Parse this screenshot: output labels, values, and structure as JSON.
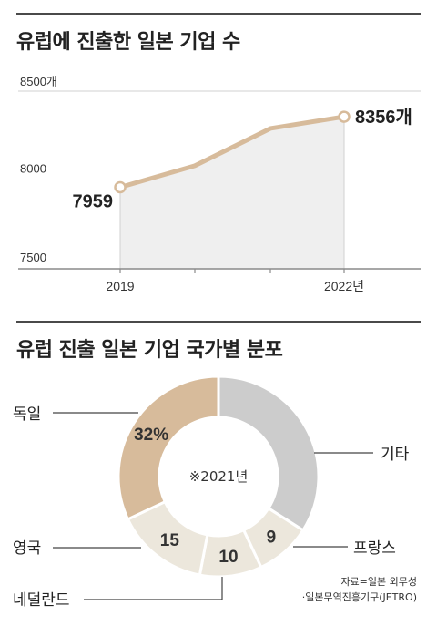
{
  "line_section": {
    "title": "유럽에 진출한 일본 기업 수"
  },
  "pie_section": {
    "title": "유럽 진출 일본 기업 국가별 분포"
  },
  "source": {
    "line1": "자료=일본 외무성",
    "line2": "·일본무역진흥기구(JETRO)"
  },
  "colors": {
    "line": "#d7bb9b",
    "area": "#efefef",
    "grid": "#d0d0d0",
    "axis": "#8a8a8a"
  },
  "chart_data": [
    {
      "type": "line",
      "title": "유럽에 진출한 일본 기업 수",
      "x": [
        2019,
        2020,
        2021,
        2022
      ],
      "x_tick_labels": [
        "2019",
        "",
        "",
        "2022년"
      ],
      "series": [
        {
          "values": [
            7959,
            8080,
            8290,
            8356
          ]
        }
      ],
      "y_tick_labels": [
        "8500개",
        "8000",
        "7500"
      ],
      "ylim": [
        7500,
        8500
      ],
      "annotations": [
        {
          "x": 2019,
          "label": "7959"
        },
        {
          "x": 2022,
          "label": "8356개"
        }
      ],
      "grid": true
    },
    {
      "type": "pie",
      "title": "유럽 진출 일본 기업 국가별 분포",
      "center_note": "※2021년",
      "slices": [
        {
          "name": "기타",
          "value": 34,
          "label": "",
          "color": "#cccccc"
        },
        {
          "name": "프랑스",
          "value": 9,
          "label": "9",
          "color": "#ece7dc"
        },
        {
          "name": "네덜란드",
          "value": 10,
          "label": "10",
          "color": "#ece7dc"
        },
        {
          "name": "영국",
          "value": 15,
          "label": "15",
          "color": "#ece7dc"
        },
        {
          "name": "독일",
          "value": 32,
          "label": "32%",
          "color": "#d7bb9b"
        }
      ]
    }
  ]
}
